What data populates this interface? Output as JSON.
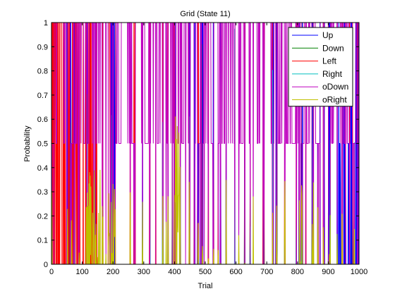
{
  "chart_data": {
    "type": "line",
    "title": "Grid (State 11)",
    "xlabel": "Trial",
    "ylabel": "Probability",
    "xlim": [
      0,
      1000
    ],
    "ylim": [
      0,
      1
    ],
    "xticks": [
      "0",
      "100",
      "200",
      "300",
      "400",
      "500",
      "600",
      "700",
      "800",
      "900",
      "1000"
    ],
    "yticks": [
      "0",
      "0.1",
      "0.2",
      "0.3",
      "0.4",
      "0.5",
      "0.6",
      "0.7",
      "0.8",
      "0.9",
      "1"
    ],
    "grid": false,
    "legend_position": "top-right",
    "series": [
      {
        "name": "Up",
        "color": "#0000ff"
      },
      {
        "name": "Down",
        "color": "#008000"
      },
      {
        "name": "Left",
        "color": "#ff0000"
      },
      {
        "name": "Right",
        "color": "#00bfbf"
      },
      {
        "name": "oDown",
        "color": "#bf00bf"
      },
      {
        "name": "oRight",
        "color": "#bfbf00"
      }
    ],
    "dominant_series": "oDown",
    "trials": 1000,
    "note_values": "dense per-trial probabilities; oDown mostly at 1.0 or 0.5 with frequent drops to 0"
  }
}
